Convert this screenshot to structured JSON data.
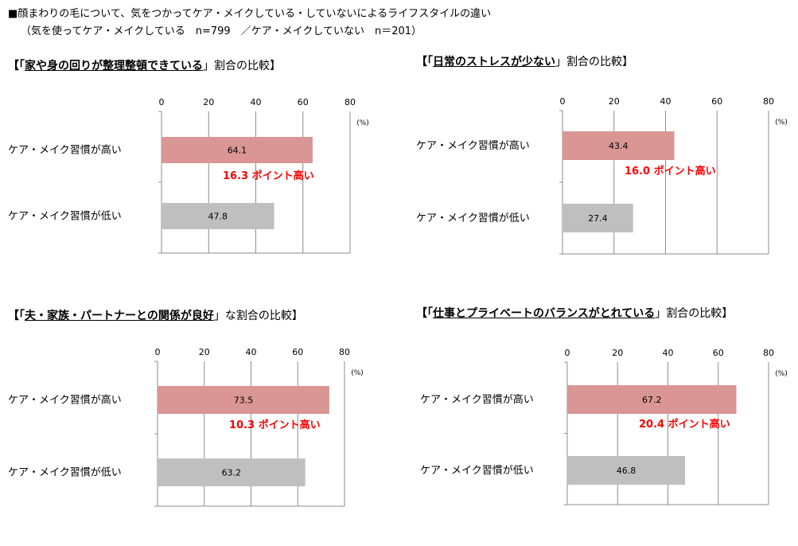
{
  "header": {
    "line1": "■顔まわりの毛について、気をつかってケア・メイクしている・していないによるライフスタイルの違い",
    "line2": "（気を使ってケア・メイクしている　n=799　／ケア・メイクしていない　n＝201）"
  },
  "colors": {
    "high_bar": "#d99694",
    "low_bar": "#bfbfbf",
    "diff_text": "#ff0000",
    "grid": "#8c8c8c"
  },
  "chart_data": [
    {
      "type": "bar",
      "title_open": "【「",
      "title_em": "家や身の回りが整理整頓できている",
      "title_rest": "」割合の比較】",
      "unit": "(%)",
      "xlim": [
        0,
        80
      ],
      "ticks": [
        "0",
        "20",
        "40",
        "60",
        "80"
      ],
      "categories": [
        "ケア・メイク習慣が高い",
        "ケア・メイク習慣が低い"
      ],
      "values": [
        64.1,
        47.8
      ],
      "value_labels": [
        "64.1",
        "47.8"
      ],
      "diff_label": "16.3 ポイント高い"
    },
    {
      "type": "bar",
      "title_open": "【「",
      "title_em": "日常のストレスが少ない",
      "title_rest": "」割合の比較】",
      "unit": "(%)",
      "xlim": [
        0,
        80
      ],
      "ticks": [
        "0",
        "20",
        "40",
        "60",
        "80"
      ],
      "categories": [
        "ケア・メイク習慣が高い",
        "ケア・メイク習慣が低い"
      ],
      "values": [
        43.4,
        27.4
      ],
      "value_labels": [
        "43.4",
        "27.4"
      ],
      "diff_label": "16.0 ポイント高い"
    },
    {
      "type": "bar",
      "title_open": "【「",
      "title_em": "夫・家族・パートナーとの関係が良好",
      "title_rest": "」な割合の比較】",
      "unit": "(%)",
      "xlim": [
        0,
        80
      ],
      "ticks": [
        "0",
        "20",
        "40",
        "60",
        "80"
      ],
      "categories": [
        "ケア・メイク習慣が高い",
        "ケア・メイク習慣が低い"
      ],
      "values": [
        73.5,
        63.2
      ],
      "value_labels": [
        "73.5",
        "63.2"
      ],
      "diff_label": "10.3 ポイント高い"
    },
    {
      "type": "bar",
      "title_open": "【「",
      "title_em": "仕事とプライベートのバランスがとれている",
      "title_rest": "」割合の比較】",
      "unit": "(%)",
      "xlim": [
        0,
        80
      ],
      "ticks": [
        "0",
        "20",
        "40",
        "60",
        "80"
      ],
      "categories": [
        "ケア・メイク習慣が高い",
        "ケア・メイク習慣が低い"
      ],
      "values": [
        67.2,
        46.8
      ],
      "value_labels": [
        "67.2",
        "46.8"
      ],
      "diff_label": "20.4 ポイント高い"
    }
  ]
}
